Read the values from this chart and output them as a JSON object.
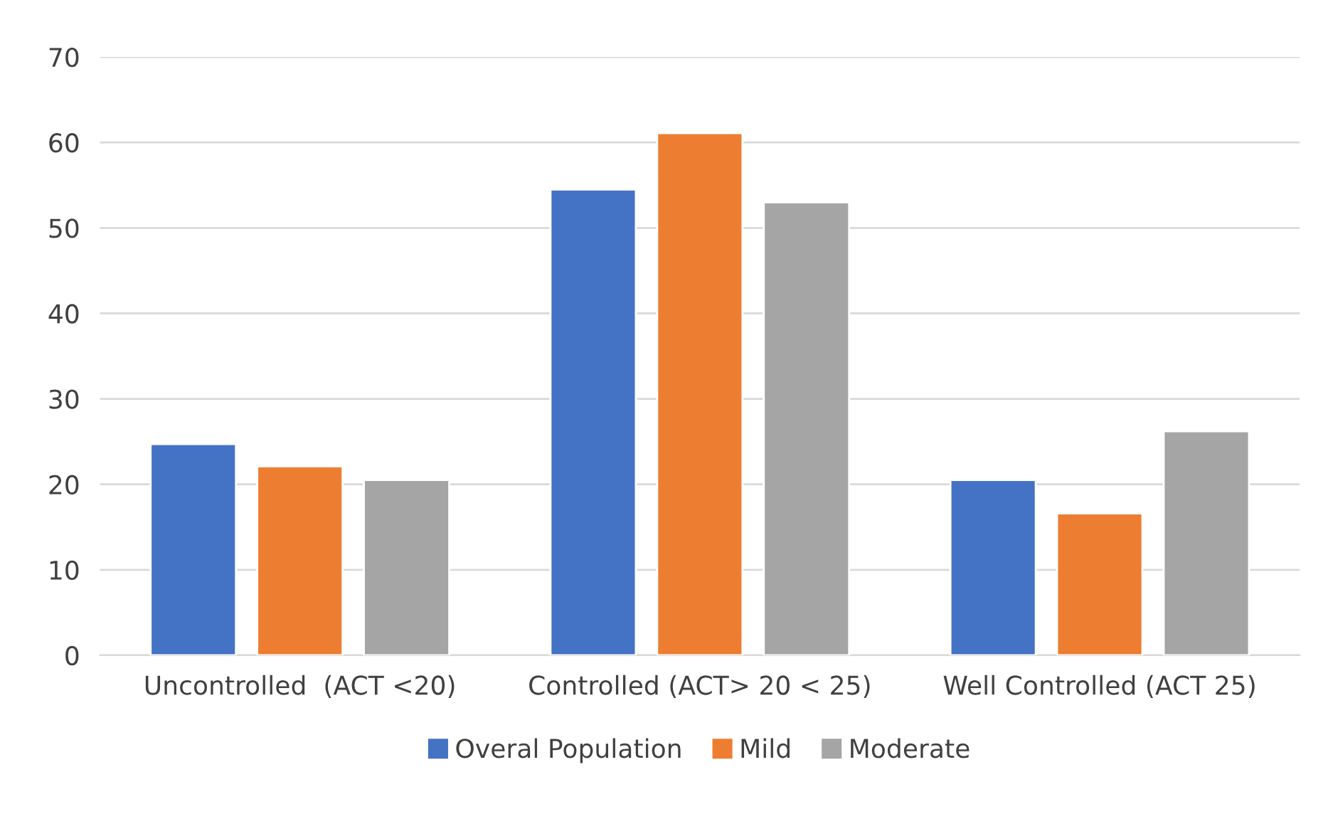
{
  "chart_data": {
    "type": "bar",
    "categories": [
      "Uncontrolled  (ACT <20)",
      "Controlled (ACT> 20 < 25)",
      "Well Controlled (ACT 25)"
    ],
    "series": [
      {
        "name": "Overal Population",
        "color": "#4472c4",
        "values": [
          24.7,
          54.5,
          20.5
        ]
      },
      {
        "name": "Mild",
        "color": "#ed7d31",
        "values": [
          22.1,
          61.1,
          16.6
        ]
      },
      {
        "name": "Moderate",
        "color": "#a5a5a5",
        "values": [
          20.5,
          53.0,
          26.2
        ]
      }
    ],
    "ylim": [
      0,
      70
    ],
    "yticks": [
      0,
      10,
      20,
      30,
      40,
      50,
      60,
      70
    ],
    "grid": "y",
    "legend": "bottom"
  }
}
